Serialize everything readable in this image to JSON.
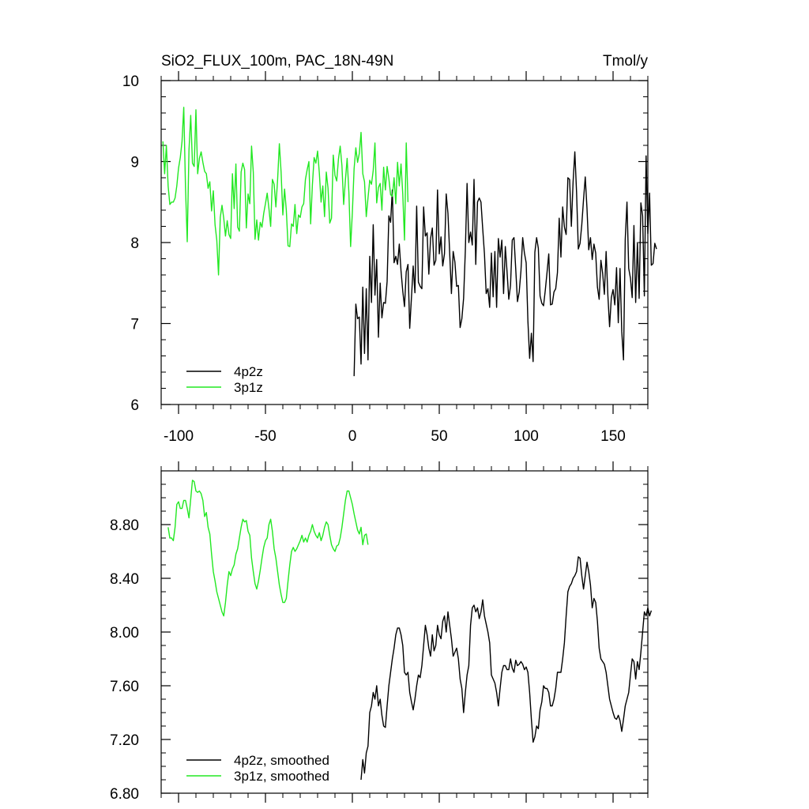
{
  "chart_data": [
    {
      "type": "line",
      "title": "SiO2_FLUX_100m, PAC_18N-49N",
      "units": "Tmol/y",
      "xlim": [
        -110,
        170
      ],
      "ylim": [
        6,
        10
      ],
      "xticks": [
        -100,
        -50,
        0,
        50,
        100,
        150
      ],
      "xtick_labels": [
        "-100",
        "-50",
        "0",
        "50",
        "100",
        "150"
      ],
      "yticks": [
        6,
        7,
        8,
        9,
        10
      ],
      "ytick_labels": [
        "6",
        "7",
        "8",
        "9",
        "10"
      ],
      "legend_position": "lower-left",
      "series": [
        {
          "name": "4p2z",
          "color": "#000000",
          "x_start": 1,
          "values": [
            6.35,
            7.24,
            7.06,
            7.08,
            6.5,
            7.45,
            6.63,
            7.43,
            6.55,
            7.83,
            7.26,
            8.22,
            7.35,
            7.79,
            6.83,
            7.5,
            7.07,
            7.26,
            7.25,
            7.52,
            8.33,
            8.25,
            8.65,
            7.75,
            7.83,
            7.73,
            7.98,
            7.65,
            7.4,
            7.21,
            7.64,
            7.73,
            6.94,
            7.32,
            7.71,
            7.38,
            8.45,
            7.51,
            7.46,
            7.43,
            8.44,
            8.08,
            8.12,
            7.61,
            8.05,
            8.18,
            7.72,
            7.78,
            8.65,
            7.86,
            8.07,
            7.71,
            7.86,
            8.6,
            8.36,
            7.87,
            7.37,
            7.89,
            7.76,
            7.46,
            7.47,
            6.95,
            7.06,
            7.31,
            7.9,
            8.73,
            8.0,
            8.13,
            7.97,
            8.78,
            7.73,
            8.5,
            8.55,
            8.5,
            8.17,
            7.86,
            7.37,
            7.43,
            7.2,
            7.87,
            7.33,
            7.89,
            7.2,
            8.05,
            7.82,
            8.03,
            7.37,
            7.95,
            7.64,
            7.3,
            7.47,
            8.03,
            8.06,
            7.67,
            7.27,
            7.39,
            7.65,
            8.06,
            7.87,
            7.75,
            7.03,
            6.57,
            6.88,
            6.53,
            7.88,
            8.06,
            7.93,
            7.34,
            7.25,
            7.22,
            7.41,
            7.63,
            7.86,
            7.23,
            7.24,
            7.39,
            7.43,
            7.63,
            8.3,
            7.82,
            8.44,
            8.19,
            8.1,
            8.8,
            8.78,
            8.2,
            8.75,
            9.12,
            8.62,
            7.92,
            7.99,
            8.22,
            8.53,
            8.81,
            8.42,
            7.91,
            8.06,
            7.79,
            7.98,
            7.87,
            7.45,
            7.3,
            7.78,
            7.62,
            7.36,
            7.89,
            7.35,
            6.96,
            7.32,
            7.42,
            7.23,
            7.69,
            7.01,
            7.68,
            6.9,
            6.55,
            8.04,
            8.5,
            7.68,
            7.56,
            7.32,
            8.21,
            7.26,
            8.0,
            7.31,
            8.49,
            8.33,
            7.34,
            9.07,
            8.11,
            8.61,
            7.72,
            7.74,
            7.99,
            7.92
          ]
        },
        {
          "name": "3p1z",
          "color": "#22e822",
          "x_start": -109,
          "values": [
            9.25,
            8.85,
            9.2,
            8.7,
            8.47,
            8.5,
            8.5,
            8.55,
            8.7,
            8.92,
            9.05,
            9.25,
            9.67,
            8.68,
            8.01,
            9.14,
            9.57,
            8.98,
            8.94,
            9.64,
            8.85,
            9.04,
            9.12,
            8.99,
            8.88,
            8.85,
            8.67,
            8.75,
            8.39,
            8.64,
            8.22,
            8.03,
            7.6,
            8.31,
            8.46,
            8.3,
            8.08,
            8.27,
            8.1,
            8.05,
            8.85,
            8.42,
            8.97,
            8.19,
            8.14,
            8.87,
            8.98,
            8.9,
            8.18,
            8.6,
            8.48,
            9.19,
            8.87,
            8.04,
            8.28,
            8.03,
            8.25,
            8.19,
            8.36,
            8.48,
            8.61,
            8.42,
            8.2,
            8.78,
            8.72,
            8.44,
            8.78,
            9.22,
            8.87,
            8.34,
            8.66,
            8.4,
            7.96,
            7.95,
            8.23,
            8.2,
            8.47,
            8.11,
            8.34,
            8.31,
            8.44,
            8.48,
            8.78,
            8.9,
            9.0,
            8.23,
            8.71,
            9.05,
            8.98,
            9.13,
            8.86,
            8.5,
            8.7,
            8.32,
            8.87,
            8.67,
            8.24,
            8.3,
            9.08,
            8.83,
            8.76,
            9.03,
            9.19,
            8.95,
            8.47,
            8.77,
            9.04,
            8.62,
            7.95,
            8.37,
            8.91,
            9.17,
            8.99,
            9.1,
            9.36,
            8.85,
            8.75,
            8.32,
            8.55,
            8.77,
            8.72,
            8.89,
            9.23,
            8.49,
            8.68,
            8.73,
            8.4,
            8.93,
            8.65,
            8.94,
            8.79,
            8.59,
            8.57,
            8.8,
            8.48,
            8.99,
            8.7,
            8.97,
            8.6,
            8.03,
            9.23,
            8.5
          ]
        }
      ]
    },
    {
      "type": "line",
      "title": "",
      "units": "",
      "xlim": [
        -110,
        170
      ],
      "ylim": [
        6.8,
        9.2
      ],
      "xticks": [
        -100,
        -50,
        0,
        50,
        100,
        150
      ],
      "yticks": [
        6.8,
        7.2,
        7.6,
        8.0,
        8.4,
        8.8
      ],
      "ytick_labels": [
        "6.80",
        "7.20",
        "7.60",
        "8.00",
        "8.40",
        "8.80"
      ],
      "legend_position": "lower-left",
      "series": [
        {
          "name": "4p2z, smoothed",
          "color": "#000000",
          "x_start": 5,
          "values": [
            6.9,
            7.05,
            6.95,
            7.1,
            7.15,
            7.4,
            7.45,
            7.55,
            7.5,
            7.6,
            7.45,
            7.5,
            7.38,
            7.3,
            7.29,
            7.45,
            7.6,
            7.7,
            7.8,
            7.88,
            7.98,
            8.03,
            8.03,
            7.98,
            7.9,
            7.7,
            7.68,
            7.7,
            7.55,
            7.48,
            7.42,
            7.5,
            7.6,
            7.68,
            7.66,
            7.75,
            7.9,
            8.05,
            7.98,
            7.88,
            7.82,
            7.98,
            7.86,
            7.9,
            8.05,
            7.98,
            7.95,
            8.08,
            8.12,
            8.0,
            8.15,
            8.05,
            7.95,
            7.82,
            7.85,
            7.88,
            7.8,
            7.65,
            7.58,
            7.4,
            7.55,
            7.68,
            7.75,
            8.05,
            8.18,
            8.2,
            8.15,
            8.18,
            8.1,
            8.15,
            8.24,
            8.12,
            8.06,
            8.0,
            7.92,
            7.68,
            7.65,
            7.62,
            7.55,
            7.45,
            7.58,
            7.7,
            7.75,
            7.75,
            7.72,
            7.72,
            7.8,
            7.73,
            7.7,
            7.79,
            7.75,
            7.76,
            7.78,
            7.76,
            7.72,
            7.74,
            7.7,
            7.55,
            7.35,
            7.18,
            7.22,
            7.3,
            7.28,
            7.42,
            7.48,
            7.6,
            7.58,
            7.58,
            7.55,
            7.45,
            7.45,
            7.5,
            7.58,
            7.7,
            7.7,
            7.7,
            7.8,
            7.92,
            8.12,
            8.3,
            8.34,
            8.36,
            8.4,
            8.42,
            8.45,
            8.56,
            8.55,
            8.42,
            8.32,
            8.42,
            8.52,
            8.45,
            8.35,
            8.18,
            8.25,
            8.22,
            8.08,
            7.88,
            7.8,
            7.78,
            7.76,
            7.7,
            7.6,
            7.5,
            7.45,
            7.4,
            7.36,
            7.35,
            7.38,
            7.34,
            7.26,
            7.35,
            7.45,
            7.5,
            7.55,
            7.68,
            7.8,
            7.78,
            7.65,
            7.78,
            7.72,
            7.85,
            8.0,
            8.15,
            8.12,
            8.18,
            8.12,
            8.16
          ]
        },
        {
          "name": "3p1z, smoothed",
          "color": "#22e822",
          "x_start": -106,
          "values": [
            8.78,
            8.7,
            8.7,
            8.68,
            8.78,
            8.95,
            8.97,
            8.92,
            8.92,
            8.98,
            8.98,
            8.92,
            8.85,
            8.99,
            9.13,
            9.12,
            9.05,
            9.04,
            9.05,
            9.03,
            8.98,
            8.86,
            8.89,
            8.78,
            8.73,
            8.58,
            8.45,
            8.38,
            8.3,
            8.25,
            8.2,
            8.15,
            8.12,
            8.22,
            8.35,
            8.45,
            8.42,
            8.47,
            8.5,
            8.58,
            8.62,
            8.7,
            8.78,
            8.84,
            8.82,
            8.83,
            8.75,
            8.72,
            8.55,
            8.45,
            8.36,
            8.32,
            8.38,
            8.46,
            8.55,
            8.63,
            8.68,
            8.7,
            8.8,
            8.84,
            8.75,
            8.62,
            8.55,
            8.45,
            8.35,
            8.28,
            8.22,
            8.22,
            8.25,
            8.38,
            8.5,
            8.6,
            8.63,
            8.6,
            8.62,
            8.65,
            8.68,
            8.72,
            8.67,
            8.7,
            8.67,
            8.72,
            8.75,
            8.8,
            8.75,
            8.72,
            8.7,
            8.74,
            8.68,
            8.72,
            8.78,
            8.82,
            8.8,
            8.72,
            8.65,
            8.62,
            8.6,
            8.64,
            8.65,
            8.7,
            8.78,
            8.88,
            8.98,
            9.05,
            9.05,
            9.0,
            8.95,
            8.88,
            8.82,
            8.76,
            8.73,
            8.78,
            8.65,
            8.72,
            8.73,
            8.65
          ]
        }
      ]
    }
  ]
}
